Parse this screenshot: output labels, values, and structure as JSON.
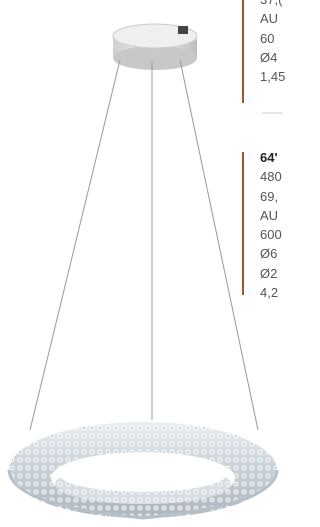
{
  "spec_blocks": [
    {
      "lines": [
        "37,(",
        "AU",
        "60",
        "Ø4",
        "1,45"
      ]
    },
    {
      "title": "64'",
      "lines": [
        "480",
        "69,",
        "AU",
        "600",
        "Ø6",
        "Ø2",
        "4,2"
      ]
    }
  ]
}
